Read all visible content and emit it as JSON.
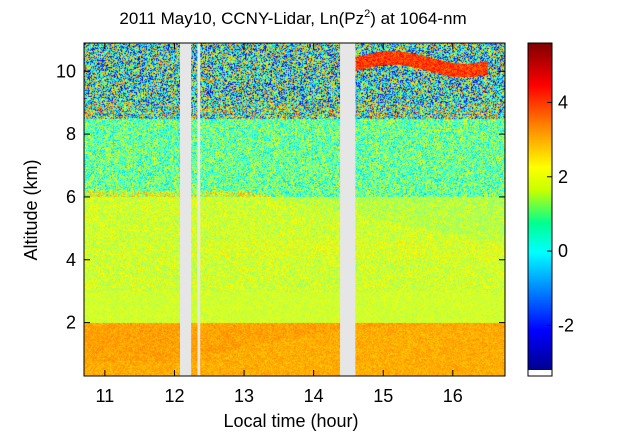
{
  "chart_data": {
    "type": "heatmap",
    "title_main": "2011 May10, CCNY-Lidar, Ln(Pz",
    "title_sup": "2",
    "title_tail": ") at 1064-nm",
    "xlabel": "Local time (hour)",
    "ylabel": "Altitude (km)",
    "xlim": [
      10.7,
      16.75
    ],
    "ylim": [
      0.3,
      10.9
    ],
    "x_ticks": [
      11,
      12,
      13,
      14,
      15,
      16
    ],
    "y_ticks": [
      2,
      4,
      6,
      8,
      10
    ],
    "colorbar": {
      "range": [
        -3.2,
        5.6
      ],
      "ticks": [
        -2,
        0,
        2,
        4
      ],
      "tick_labels": [
        "-2",
        "0",
        "2",
        "4"
      ]
    },
    "data_gaps": [
      [
        12.08,
        12.24
      ],
      [
        12.33,
        12.37
      ],
      [
        14.38,
        14.6
      ]
    ],
    "field": {
      "layers": [
        {
          "name": "near-surface boundary layer",
          "z_range": [
            0.3,
            2.0
          ],
          "value": 3.1
        },
        {
          "name": "aerosol layer",
          "z_range": [
            2.0,
            6.0
          ],
          "value": 1.7
        },
        {
          "name": "free troposphere",
          "z_range": [
            6.0,
            9.0
          ],
          "value": 1.0
        },
        {
          "name": "noisy upper region",
          "z_range": [
            9.0,
            10.9
          ],
          "value": 0.5
        }
      ],
      "cloud_layer": {
        "z_range": [
          9.8,
          10.6
        ],
        "t_range": [
          14.6,
          16.5
        ],
        "value": 4.0
      }
    }
  }
}
